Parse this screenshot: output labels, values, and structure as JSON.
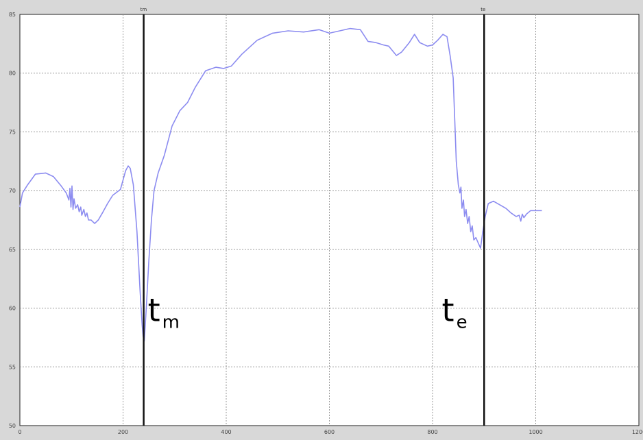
{
  "chart_data": {
    "type": "line",
    "title": "",
    "xlabel": "",
    "ylabel": "",
    "xlim": [
      0,
      1200
    ],
    "ylim": [
      50,
      85
    ],
    "xticks": [
      0,
      200,
      400,
      600,
      800,
      1000,
      1200
    ],
    "yticks": [
      50,
      55,
      60,
      65,
      70,
      75,
      80,
      85
    ],
    "grid": true,
    "series": [
      {
        "color": "#8c8cf0",
        "points": [
          [
            0,
            68.6
          ],
          [
            5,
            69.8
          ],
          [
            15,
            70.5
          ],
          [
            30,
            71.4
          ],
          [
            50,
            71.5
          ],
          [
            65,
            71.2
          ],
          [
            80,
            70.4
          ],
          [
            90,
            69.8
          ],
          [
            95,
            69.2
          ],
          [
            97,
            70.2
          ],
          [
            99,
            68.6
          ],
          [
            101,
            70.4
          ],
          [
            103,
            68.4
          ],
          [
            105,
            69.3
          ],
          [
            108,
            68.5
          ],
          [
            112,
            68.8
          ],
          [
            115,
            68.2
          ],
          [
            118,
            68.6
          ],
          [
            120,
            67.9
          ],
          [
            124,
            68.4
          ],
          [
            127,
            67.8
          ],
          [
            130,
            68.1
          ],
          [
            133,
            67.5
          ],
          [
            138,
            67.5
          ],
          [
            145,
            67.2
          ],
          [
            152,
            67.5
          ],
          [
            160,
            68.1
          ],
          [
            170,
            68.9
          ],
          [
            180,
            69.6
          ],
          [
            195,
            70.1
          ],
          [
            205,
            71.7
          ],
          [
            210,
            72.1
          ],
          [
            214,
            71.9
          ],
          [
            220,
            70.5
          ],
          [
            227,
            66.5
          ],
          [
            233,
            61.5
          ],
          [
            237,
            58.6
          ],
          [
            239,
            57.6
          ],
          [
            241,
            57.2
          ],
          [
            242,
            57.8
          ],
          [
            245,
            60.0
          ],
          [
            250,
            64.0
          ],
          [
            255,
            67.5
          ],
          [
            260,
            70.0
          ],
          [
            268,
            71.5
          ],
          [
            280,
            73.0
          ],
          [
            295,
            75.5
          ],
          [
            310,
            76.8
          ],
          [
            325,
            77.5
          ],
          [
            340,
            78.8
          ],
          [
            360,
            80.2
          ],
          [
            380,
            80.5
          ],
          [
            395,
            80.4
          ],
          [
            410,
            80.6
          ],
          [
            430,
            81.6
          ],
          [
            460,
            82.8
          ],
          [
            490,
            83.4
          ],
          [
            520,
            83.6
          ],
          [
            550,
            83.5
          ],
          [
            580,
            83.7
          ],
          [
            600,
            83.4
          ],
          [
            620,
            83.6
          ],
          [
            640,
            83.8
          ],
          [
            660,
            83.7
          ],
          [
            675,
            82.7
          ],
          [
            690,
            82.6
          ],
          [
            705,
            82.4
          ],
          [
            715,
            82.3
          ],
          [
            730,
            81.5
          ],
          [
            740,
            81.8
          ],
          [
            755,
            82.6
          ],
          [
            765,
            83.3
          ],
          [
            775,
            82.6
          ],
          [
            790,
            82.3
          ],
          [
            800,
            82.4
          ],
          [
            810,
            82.8
          ],
          [
            820,
            83.3
          ],
          [
            828,
            83.1
          ],
          [
            834,
            81.5
          ],
          [
            840,
            79.6
          ],
          [
            843,
            76.0
          ],
          [
            846,
            72.5
          ],
          [
            850,
            70.5
          ],
          [
            853,
            69.8
          ],
          [
            855,
            70.3
          ],
          [
            857,
            68.5
          ],
          [
            860,
            69.2
          ],
          [
            862,
            67.8
          ],
          [
            865,
            68.4
          ],
          [
            868,
            67.2
          ],
          [
            871,
            67.8
          ],
          [
            874,
            66.5
          ],
          [
            877,
            67.0
          ],
          [
            880,
            65.8
          ],
          [
            884,
            66.0
          ],
          [
            888,
            65.6
          ],
          [
            893,
            65.1
          ],
          [
            897,
            66.4
          ],
          [
            902,
            67.8
          ],
          [
            908,
            68.9
          ],
          [
            918,
            69.1
          ],
          [
            930,
            68.8
          ],
          [
            942,
            68.5
          ],
          [
            952,
            68.1
          ],
          [
            962,
            67.8
          ],
          [
            968,
            67.9
          ],
          [
            971,
            67.4
          ],
          [
            974,
            68.0
          ],
          [
            977,
            67.7
          ],
          [
            982,
            68.0
          ],
          [
            990,
            68.3
          ],
          [
            1000,
            68.3
          ],
          [
            1012,
            68.3
          ]
        ]
      }
    ],
    "vertical_markers": [
      {
        "x": 240,
        "tag": "tm",
        "sub": "m"
      },
      {
        "x": 900,
        "tag": "te",
        "sub": "e"
      }
    ],
    "annotations": [
      {
        "text": "t",
        "sub": "m",
        "x": 248,
        "y": 58.9
      },
      {
        "text": "t",
        "sub": "e",
        "x": 818,
        "y": 58.9
      }
    ]
  }
}
